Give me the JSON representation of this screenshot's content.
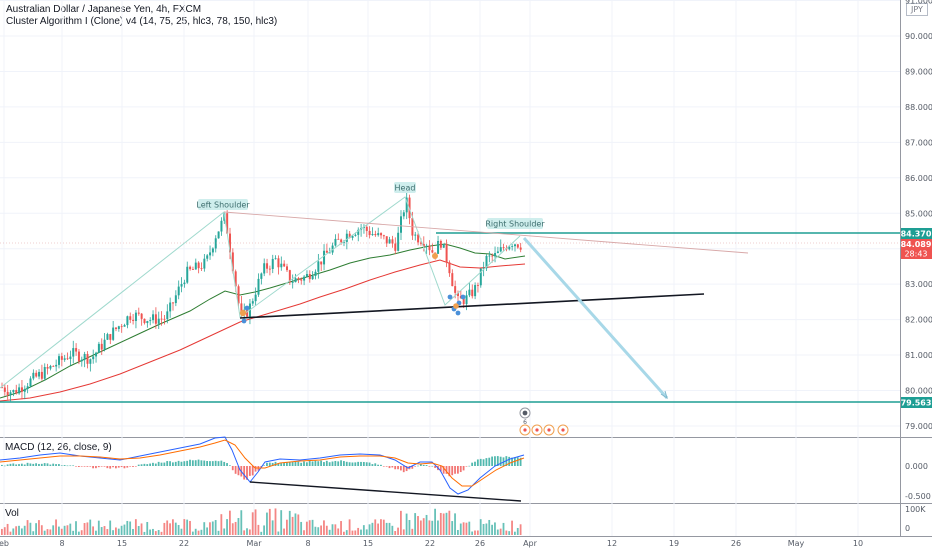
{
  "header": {
    "symbol_line": "Australian Dollar / Japanese Yen, 4h, FXCM",
    "indicator_line": "Cluster Algorithm I (Clone) v4 (14, 75, 25, hlc3, 78, 150, hlc3)"
  },
  "currency": "JPY",
  "macd_label": "MACD (12, 26, close, 9)",
  "vol_label": "Vol",
  "price_ticks": [
    "91.000",
    "90.000",
    "89.000",
    "88.000",
    "87.000",
    "86.000",
    "85.000",
    "84.000",
    "83.000",
    "82.000",
    "81.000",
    "80.000",
    "79.000"
  ],
  "price_tick_values": [
    91,
    90,
    89,
    88,
    87,
    86,
    85,
    84,
    83,
    82,
    81,
    80,
    79
  ],
  "macd_ticks": [
    "0.000",
    "-0.500"
  ],
  "vol_ticks": [
    "100K",
    "0"
  ],
  "x_ticks": [
    "eb",
    "8",
    "15",
    "22",
    "Mar",
    "8",
    "15",
    "22",
    "26",
    "Apr",
    "12",
    "19",
    "26",
    "May",
    "10"
  ],
  "price_labels": {
    "resistance": "84.370",
    "last": "84.089",
    "countdown": "28:43",
    "support": "79.563"
  },
  "annotations": {
    "left_shoulder": "Left Shoulder",
    "head": "Head",
    "right_shoulder": "Right Shoulder"
  },
  "colors": {
    "up": "#26a69a",
    "down": "#ef5350",
    "resistance": "#1e9e94",
    "ma_green": "#2e7d32",
    "ma_red": "#e53935",
    "macd": "#2962ff",
    "signal": "#ff6d00",
    "projection": "#a8d8e8"
  },
  "chart_data": {
    "type": "candlestick",
    "y_range": [
      78.6,
      91.05
    ],
    "key_levels": {
      "resistance": 84.37,
      "support": 79.563,
      "last": 84.089
    },
    "pattern": "head-and-shoulders",
    "points": [
      {
        "name": "Left Shoulder",
        "x": "Feb 27",
        "y": 84.95
      },
      {
        "name": "Head",
        "x": "Mar 19",
        "y": 85.45
      },
      {
        "name": "Right Shoulder",
        "x": "Mar 29",
        "y": 84.35
      }
    ]
  }
}
